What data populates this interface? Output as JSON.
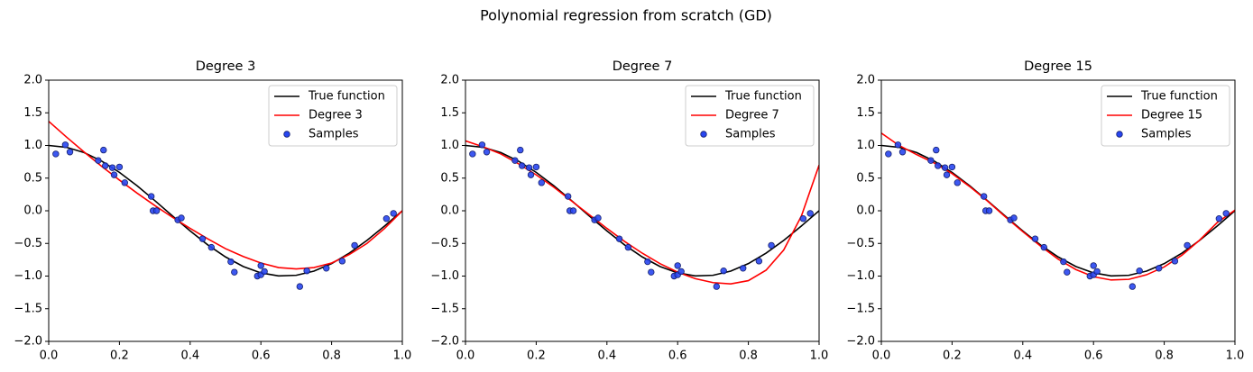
{
  "title": "Polynomial regression from scratch (GD)",
  "chart_data": [
    {
      "type": "line",
      "title": "Degree 3",
      "legend": "upper right",
      "grid": false,
      "xlim": [
        0,
        1
      ],
      "ylim": [
        -2,
        2
      ],
      "xticks": [
        {
          "value": 0,
          "label": "0.0"
        },
        {
          "value": 0.2,
          "label": "0.2"
        },
        {
          "value": 0.4,
          "label": "0.4"
        },
        {
          "value": 0.6,
          "label": "0.6"
        },
        {
          "value": 0.8,
          "label": "0.8"
        },
        {
          "value": 1,
          "label": "1.0"
        }
      ],
      "yticks": [
        {
          "value": -2,
          "label": "−2.0"
        },
        {
          "value": -1.5,
          "label": "−1.5"
        },
        {
          "value": -1,
          "label": "−1.0"
        },
        {
          "value": -0.5,
          "label": "−0.5"
        },
        {
          "value": 0,
          "label": "0.0"
        },
        {
          "value": 0.5,
          "label": "0.5"
        },
        {
          "value": 1,
          "label": "1.0"
        },
        {
          "value": 1.5,
          "label": "1.5"
        },
        {
          "value": 2,
          "label": "2.0"
        }
      ],
      "x": [
        0,
        0.05,
        0.1,
        0.15,
        0.2,
        0.25,
        0.3,
        0.35,
        0.4,
        0.45,
        0.5,
        0.55,
        0.6,
        0.65,
        0.7,
        0.75,
        0.8,
        0.85,
        0.9,
        0.95,
        1
      ],
      "series": [
        {
          "name": "True function",
          "color": "#000000",
          "values": [
            1,
            0.972,
            0.891,
            0.76,
            0.588,
            0.383,
            0.156,
            -0.079,
            -0.309,
            -0.523,
            -0.707,
            -0.853,
            -0.951,
            -0.997,
            -0.988,
            -0.924,
            -0.809,
            -0.649,
            -0.454,
            -0.233,
            0
          ]
        },
        {
          "name": "Degree 3",
          "color": "#ff0000",
          "values": [
            1.37,
            1.13,
            0.9,
            0.68,
            0.47,
            0.27,
            0.08,
            -0.1,
            -0.27,
            -0.43,
            -0.58,
            -0.7,
            -0.8,
            -0.87,
            -0.89,
            -0.87,
            -0.8,
            -0.67,
            -0.5,
            -0.27,
            0
          ]
        },
        {
          "name": "Samples",
          "type": "scatter",
          "color": "#2846f0",
          "x": [
            0.02,
            0.047,
            0.06,
            0.14,
            0.155,
            0.16,
            0.18,
            0.185,
            0.2,
            0.215,
            0.29,
            0.295,
            0.305,
            0.365,
            0.375,
            0.435,
            0.46,
            0.515,
            0.525,
            0.59,
            0.6,
            0.6,
            0.61,
            0.71,
            0.73,
            0.785,
            0.83,
            0.865,
            0.955,
            0.975
          ],
          "values": [
            0.87,
            1.01,
            0.9,
            0.77,
            0.93,
            0.69,
            0.66,
            0.55,
            0.67,
            0.43,
            0.22,
            0.0,
            0.0,
            -0.14,
            -0.11,
            -0.43,
            -0.56,
            -0.78,
            -0.94,
            -1.0,
            -0.98,
            -0.84,
            -0.93,
            -1.16,
            -0.92,
            -0.88,
            -0.77,
            -0.53,
            -0.12,
            -0.04
          ]
        }
      ]
    },
    {
      "type": "line",
      "title": "Degree 7",
      "legend": "upper right",
      "grid": false,
      "xlim": [
        0,
        1
      ],
      "ylim": [
        -2,
        2
      ],
      "xticks": [
        {
          "value": 0,
          "label": "0.0"
        },
        {
          "value": 0.2,
          "label": "0.2"
        },
        {
          "value": 0.4,
          "label": "0.4"
        },
        {
          "value": 0.6,
          "label": "0.6"
        },
        {
          "value": 0.8,
          "label": "0.8"
        },
        {
          "value": 1,
          "label": "1.0"
        }
      ],
      "yticks": [
        {
          "value": -2,
          "label": "−2.0"
        },
        {
          "value": -1.5,
          "label": "−1.5"
        },
        {
          "value": -1,
          "label": "−1.0"
        },
        {
          "value": -0.5,
          "label": "−0.5"
        },
        {
          "value": 0,
          "label": "0.0"
        },
        {
          "value": 0.5,
          "label": "0.5"
        },
        {
          "value": 1,
          "label": "1.0"
        },
        {
          "value": 1.5,
          "label": "1.5"
        },
        {
          "value": 2,
          "label": "2.0"
        }
      ],
      "x": [
        0,
        0.05,
        0.1,
        0.15,
        0.2,
        0.25,
        0.3,
        0.35,
        0.4,
        0.45,
        0.5,
        0.55,
        0.6,
        0.65,
        0.7,
        0.75,
        0.8,
        0.85,
        0.9,
        0.95,
        1
      ],
      "series": [
        {
          "name": "True function",
          "color": "#000000",
          "values": [
            1,
            0.972,
            0.891,
            0.76,
            0.588,
            0.383,
            0.156,
            -0.079,
            -0.309,
            -0.523,
            -0.707,
            -0.853,
            -0.951,
            -0.997,
            -0.988,
            -0.924,
            -0.809,
            -0.649,
            -0.454,
            -0.233,
            0
          ]
        },
        {
          "name": "Degree 7",
          "color": "#ff0000",
          "values": [
            1.07,
            0.98,
            0.87,
            0.72,
            0.55,
            0.36,
            0.15,
            -0.06,
            -0.27,
            -0.47,
            -0.65,
            -0.81,
            -0.94,
            -1.04,
            -1.1,
            -1.12,
            -1.07,
            -0.91,
            -0.6,
            -0.08,
            0.7
          ]
        },
        {
          "name": "Samples",
          "type": "scatter",
          "color": "#2846f0",
          "x": [
            0.02,
            0.047,
            0.06,
            0.14,
            0.155,
            0.16,
            0.18,
            0.185,
            0.2,
            0.215,
            0.29,
            0.295,
            0.305,
            0.365,
            0.375,
            0.435,
            0.46,
            0.515,
            0.525,
            0.59,
            0.6,
            0.6,
            0.61,
            0.71,
            0.73,
            0.785,
            0.83,
            0.865,
            0.955,
            0.975
          ],
          "values": [
            0.87,
            1.01,
            0.9,
            0.77,
            0.93,
            0.69,
            0.66,
            0.55,
            0.67,
            0.43,
            0.22,
            0.0,
            0.0,
            -0.14,
            -0.11,
            -0.43,
            -0.56,
            -0.78,
            -0.94,
            -1.0,
            -0.98,
            -0.84,
            -0.93,
            -1.16,
            -0.92,
            -0.88,
            -0.77,
            -0.53,
            -0.12,
            -0.04
          ]
        }
      ]
    },
    {
      "type": "line",
      "title": "Degree 15",
      "legend": "upper right",
      "grid": false,
      "xlim": [
        0,
        1
      ],
      "ylim": [
        -2,
        2
      ],
      "xticks": [
        {
          "value": 0,
          "label": "0.0"
        },
        {
          "value": 0.2,
          "label": "0.2"
        },
        {
          "value": 0.4,
          "label": "0.4"
        },
        {
          "value": 0.6,
          "label": "0.6"
        },
        {
          "value": 0.8,
          "label": "0.8"
        },
        {
          "value": 1,
          "label": "1.0"
        }
      ],
      "yticks": [
        {
          "value": -2,
          "label": "−2.0"
        },
        {
          "value": -1.5,
          "label": "−1.5"
        },
        {
          "value": -1,
          "label": "−1.0"
        },
        {
          "value": -0.5,
          "label": "−0.5"
        },
        {
          "value": 0,
          "label": "0.0"
        },
        {
          "value": 0.5,
          "label": "0.5"
        },
        {
          "value": 1,
          "label": "1.0"
        },
        {
          "value": 1.5,
          "label": "1.5"
        },
        {
          "value": 2,
          "label": "2.0"
        }
      ],
      "x": [
        0,
        0.05,
        0.1,
        0.15,
        0.2,
        0.25,
        0.3,
        0.35,
        0.4,
        0.45,
        0.5,
        0.55,
        0.6,
        0.65,
        0.7,
        0.75,
        0.8,
        0.85,
        0.9,
        0.95,
        1
      ],
      "series": [
        {
          "name": "True function",
          "color": "#000000",
          "values": [
            1,
            0.972,
            0.891,
            0.76,
            0.588,
            0.383,
            0.156,
            -0.079,
            -0.309,
            -0.523,
            -0.707,
            -0.853,
            -0.951,
            -0.997,
            -0.988,
            -0.924,
            -0.809,
            -0.649,
            -0.454,
            -0.233,
            0
          ]
        },
        {
          "name": "Degree 15",
          "color": "#ff0000",
          "values": [
            1.19,
            1.0,
            0.86,
            0.73,
            0.57,
            0.37,
            0.15,
            -0.09,
            -0.32,
            -0.54,
            -0.74,
            -0.9,
            -1.01,
            -1.06,
            -1.05,
            -0.98,
            -0.86,
            -0.68,
            -0.45,
            -0.18,
            0.01
          ]
        },
        {
          "name": "Samples",
          "type": "scatter",
          "color": "#2846f0",
          "x": [
            0.02,
            0.047,
            0.06,
            0.14,
            0.155,
            0.16,
            0.18,
            0.185,
            0.2,
            0.215,
            0.29,
            0.295,
            0.305,
            0.365,
            0.375,
            0.435,
            0.46,
            0.515,
            0.525,
            0.59,
            0.6,
            0.6,
            0.61,
            0.71,
            0.73,
            0.785,
            0.83,
            0.865,
            0.955,
            0.975
          ],
          "values": [
            0.87,
            1.01,
            0.9,
            0.77,
            0.93,
            0.69,
            0.66,
            0.55,
            0.67,
            0.43,
            0.22,
            0.0,
            0.0,
            -0.14,
            -0.11,
            -0.43,
            -0.56,
            -0.78,
            -0.94,
            -1.0,
            -0.98,
            -0.84,
            -0.93,
            -1.16,
            -0.92,
            -0.88,
            -0.77,
            -0.53,
            -0.12,
            -0.04
          ]
        }
      ]
    }
  ]
}
